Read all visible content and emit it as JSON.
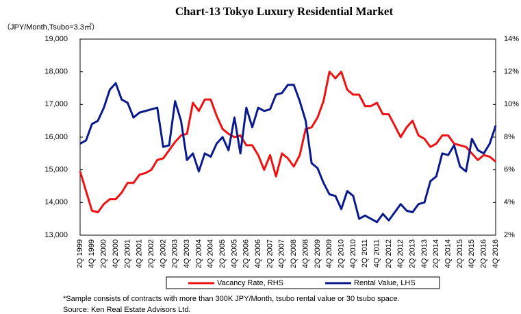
{
  "chart_data": {
    "type": "line",
    "title": "Chart-13 Tokyo Luxury Residential Market",
    "unit_label": "（JPY/Month,Tsubo=3.3㎡）",
    "categories": [
      "2Q 1999",
      null,
      "4Q 1999",
      null,
      "2Q 2000",
      null,
      "4Q 2000",
      null,
      "2Q 2001",
      null,
      "4Q 2001",
      null,
      "2Q 2002",
      null,
      "4Q 2002",
      null,
      "2Q 2003",
      null,
      "4Q 2003",
      null,
      "2Q 2004",
      null,
      "4Q 2004",
      null,
      "2Q 2005",
      null,
      "4Q 2005",
      null,
      "2Q 2006",
      null,
      "4Q 2006",
      null,
      "2Q 2007",
      null,
      "4Q 2007",
      null,
      "2Q 2008",
      null,
      "4Q 2008",
      null,
      "2Q 2009",
      null,
      "4Q 2009",
      null,
      "2Q 2010",
      null,
      "4Q 2010",
      null,
      "2Q 2011",
      null,
      "4Q 2011",
      null,
      "2Q 2012",
      null,
      "4Q 2012",
      null,
      "2Q 2013",
      null,
      "4Q 2013",
      null,
      "2Q 2014",
      null,
      "4Q 2014",
      null,
      "2Q 2015",
      null,
      "4Q 2015",
      null,
      "2Q 2016",
      null,
      "4Q 2016"
    ],
    "series": [
      {
        "name": "Vacancy Rate, RHS",
        "color": "#ee1111",
        "axis": "y2",
        "values": [
          5.9,
          4.7,
          3.5,
          3.4,
          3.9,
          4.2,
          4.2,
          4.6,
          5.2,
          5.2,
          5.7,
          5.8,
          6.0,
          6.6,
          6.7,
          7.2,
          7.7,
          8.1,
          8.2,
          10.1,
          9.6,
          10.3,
          10.3,
          9.3,
          8.5,
          8.2,
          8.0,
          8.1,
          7.5,
          7.5,
          6.9,
          6.0,
          6.9,
          5.6,
          7.0,
          6.7,
          6.2,
          6.9,
          8.5,
          8.6,
          9.2,
          10.2,
          12.0,
          11.6,
          12.0,
          10.9,
          10.6,
          10.6,
          9.9,
          9.9,
          10.1,
          9.4,
          9.4,
          8.7,
          8.0,
          8.6,
          9.0,
          8.1,
          7.9,
          7.4,
          7.6,
          8.1,
          8.1,
          7.6,
          7.5,
          7.4,
          7.0,
          6.6,
          6.9,
          6.8,
          6.5
        ]
      },
      {
        "name": "Rental Value, LHS",
        "color": "#0a1a8c",
        "values": [
          15800,
          15900,
          16400,
          16500,
          16900,
          17450,
          17650,
          17150,
          17050,
          16600,
          16750,
          16800,
          16850,
          16900,
          15700,
          15750,
          17100,
          16500,
          15300,
          15500,
          14950,
          15500,
          15400,
          15800,
          16000,
          15600,
          16600,
          15500,
          16900,
          16300,
          16900,
          16800,
          16850,
          17300,
          17350,
          17600,
          17600,
          17100,
          16500,
          15200,
          15050,
          14600,
          14250,
          14200,
          13800,
          14350,
          14200,
          13500,
          13600,
          13500,
          13400,
          13650,
          13450,
          13700,
          13950,
          13750,
          13700,
          13950,
          14000,
          14650,
          14800,
          15500,
          15450,
          15750,
          15100,
          14950,
          15950,
          15600,
          15500,
          15800,
          16350
        ]
      }
    ],
    "ylim": [
      13000,
      19000
    ],
    "yticks": [
      {
        "value": 13000,
        "label": "13,000"
      },
      {
        "value": 14000,
        "label": "14,000"
      },
      {
        "value": 15000,
        "label": "15,000"
      },
      {
        "value": 16000,
        "label": "16,000"
      },
      {
        "value": 17000,
        "label": "17,000"
      },
      {
        "value": 18000,
        "label": "18,000"
      },
      {
        "value": 19000,
        "label": "19,000"
      }
    ],
    "y2lim": [
      2,
      14
    ],
    "y2ticks": [
      {
        "value": 2,
        "label": "2%"
      },
      {
        "value": 4,
        "label": "4%"
      },
      {
        "value": 6,
        "label": "6%"
      },
      {
        "value": 8,
        "label": "8%"
      },
      {
        "value": 10,
        "label": "10%"
      },
      {
        "value": 12,
        "label": "12%"
      },
      {
        "value": 14,
        "label": "14%"
      }
    ],
    "notes": [
      "*Sample consists of contracts with more than 300K JPY/Month, tsubo rental value or 30 tsubo space.",
      "Source: Ken Real Estate Advisors Ltd."
    ]
  }
}
